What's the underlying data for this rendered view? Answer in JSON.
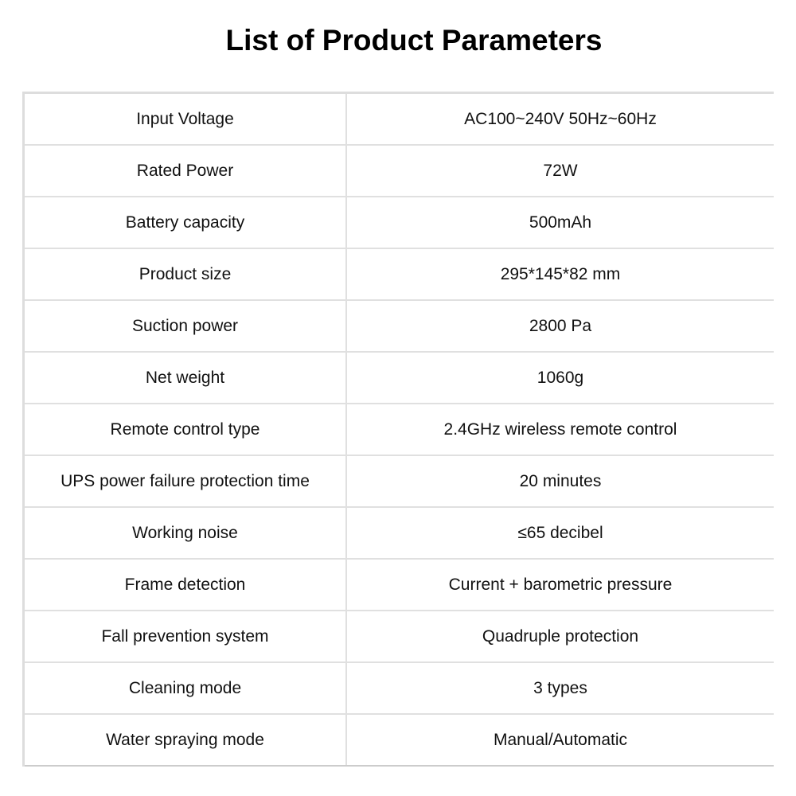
{
  "title": "List of Product Parameters",
  "rows": [
    {
      "label": "Input Voltage",
      "value": "AC100~240V 50Hz~60Hz"
    },
    {
      "label": "Rated Power",
      "value": "72W"
    },
    {
      "label": "Battery capacity",
      "value": "500mAh"
    },
    {
      "label": "Product size",
      "value": "295*145*82 mm"
    },
    {
      "label": "Suction power",
      "value": "2800 Pa"
    },
    {
      "label": "Net weight",
      "value": "1060g"
    },
    {
      "label": "Remote control type",
      "value": "2.4GHz wireless remote control"
    },
    {
      "label": "UPS power failure protection time",
      "value": "20 minutes"
    },
    {
      "label": "Working noise",
      "value": "≤65 decibel"
    },
    {
      "label": "Frame detection",
      "value": "Current + barometric pressure"
    },
    {
      "label": "Fall prevention system",
      "value": "Quadruple protection"
    },
    {
      "label": "Cleaning mode",
      "value": "3 types"
    },
    {
      "label": "Water spraying mode",
      "value": "Manual/Automatic"
    }
  ]
}
